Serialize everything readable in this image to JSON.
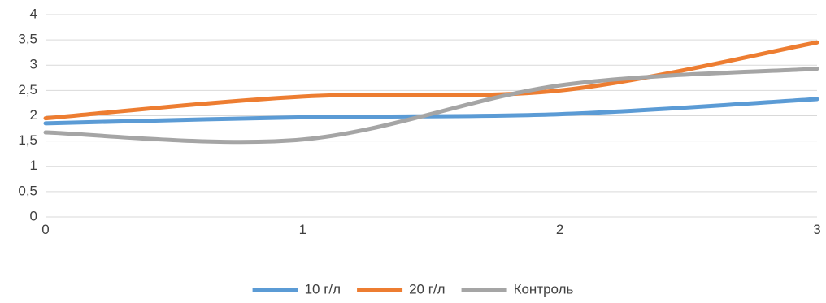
{
  "chart_data": {
    "type": "line",
    "smooth": true,
    "title": "",
    "xlabel": "",
    "ylabel": "",
    "xlim": [
      0,
      3
    ],
    "ylim": [
      0,
      4
    ],
    "x_ticks": [
      "0",
      "1",
      "2",
      "3"
    ],
    "y_ticks": [
      "0",
      "0,5",
      "1",
      "1,5",
      "2",
      "2,5",
      "3",
      "3,5",
      "4"
    ],
    "grid": "horizontal",
    "legend_position": "bottom",
    "series": [
      {
        "name": "10 г/л",
        "color": "#5b9bd5",
        "points": [
          [
            0,
            1.85
          ],
          [
            1,
            1.97
          ],
          [
            2,
            2.03
          ],
          [
            3,
            2.33
          ]
        ]
      },
      {
        "name": "20 г/л",
        "color": "#ed7d31",
        "points": [
          [
            0,
            1.95
          ],
          [
            1,
            2.38
          ],
          [
            2,
            2.5
          ],
          [
            3,
            3.45
          ]
        ]
      },
      {
        "name": "Контроль",
        "color": "#a5a5a5",
        "points": [
          [
            0,
            1.67
          ],
          [
            1,
            1.53
          ],
          [
            2,
            2.6
          ],
          [
            3,
            2.93
          ]
        ]
      }
    ]
  }
}
